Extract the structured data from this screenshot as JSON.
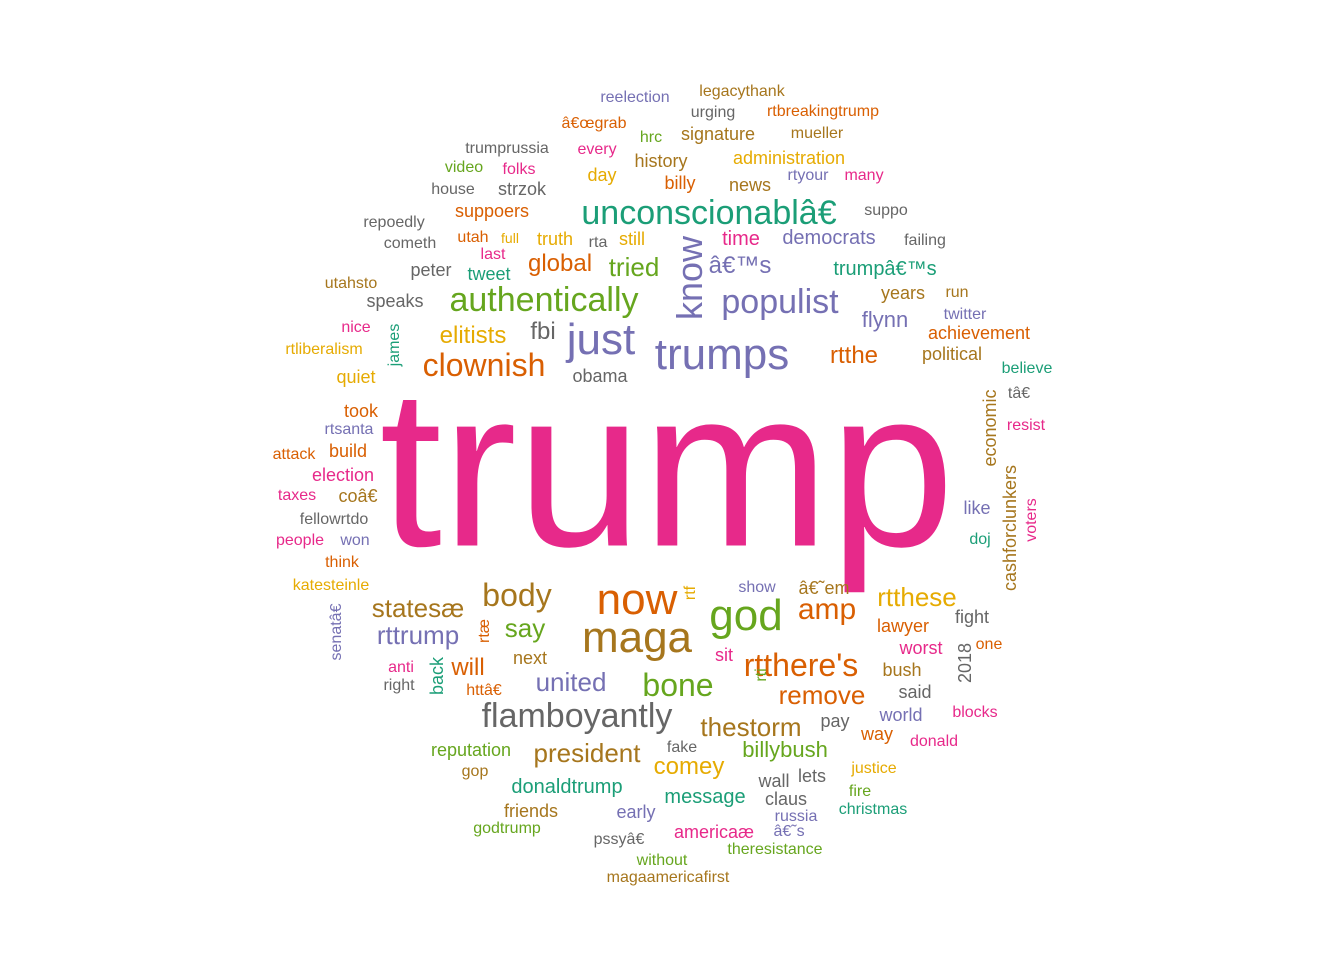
{
  "palette": {
    "teal": "#1b9e77",
    "orange": "#d95f02",
    "purple": "#7570b3",
    "pink": "#e7298a",
    "green": "#66a61e",
    "gold": "#e6ab02",
    "brown": "#a6761d",
    "gray": "#666666"
  },
  "words": [
    "trump",
    "now",
    "maga",
    "god",
    "just",
    "trumps",
    "know",
    "populist",
    "flamboyantly",
    "unconscionablâ€",
    "authentically",
    "clownish",
    "body",
    "bone",
    "rtthere's",
    "amp",
    "rtthese",
    "thestorm",
    "say",
    "remove",
    "united",
    "president",
    "billybush",
    "statesæ",
    "rttrump",
    "comey",
    "fbi",
    "elitists",
    "global",
    "tried",
    "â€™s",
    "rtthe",
    "time",
    "democrats",
    "trumpâ€™s",
    "flynn",
    "obama",
    "will",
    "donaldtrump",
    "message",
    "next",
    "years",
    "achievement",
    "political",
    "economic",
    "cashforclunkers",
    "lawyer",
    "worst",
    "bush",
    "pay",
    "reputation",
    "history",
    "administration",
    "signature",
    "news",
    "rtyour",
    "many",
    "suppoers",
    "truth",
    "still",
    "rta",
    "tweet",
    "peter",
    "speaks",
    "james",
    "rtliberalism",
    "quiet",
    "took",
    "rtsanta",
    "build",
    "attack",
    "election",
    "taxes",
    "coâ€",
    "fellowrtdo",
    "people",
    "won",
    "think",
    "katesteinle",
    "senatâ€",
    "anti",
    "right",
    "back",
    "rtæ",
    "httâ€",
    "rtf",
    "rti",
    "show",
    "â€˜em",
    "fight",
    "2018",
    "one",
    "said",
    "world",
    "blocks",
    "way",
    "donald",
    "sit",
    "fake",
    "wall",
    "lets",
    "claus",
    "russia",
    "christmas",
    "justice",
    "fire",
    "early",
    "americaæ",
    "â€˜s",
    "friends",
    "gop",
    "godtrump",
    "pssyâ€",
    "without",
    "theresistance",
    "magaamericafirst",
    "reelection",
    "legacythank",
    "rtbreakingtrump",
    "urging",
    "â€œgrab",
    "hrc",
    "mueller",
    "trumprussia",
    "every",
    "video",
    "folks",
    "house",
    "strzok",
    "day",
    "billy",
    "repoedly",
    "suppo",
    "cometh",
    "utah",
    "full",
    "last",
    "failing",
    "utahsto",
    "run",
    "twitter",
    "nice",
    "believe",
    "tâ€",
    "resist",
    "like",
    "doj",
    "voters"
  ]
}
